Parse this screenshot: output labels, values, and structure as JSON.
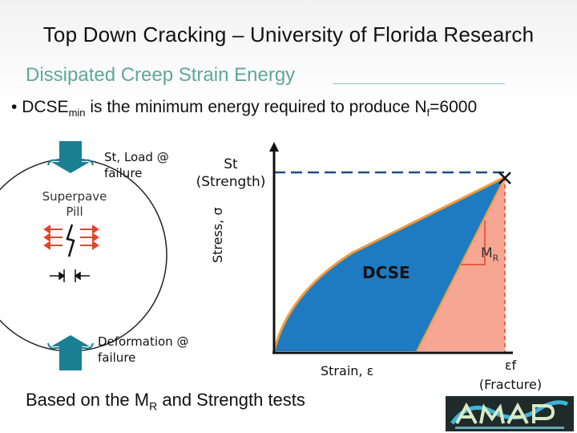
{
  "slide": {
    "title": "Top Down Cracking – University of Florida Research",
    "subtitle": "Dissipated Creep Strain Energy",
    "bullet": {
      "symbol": "•",
      "pre": "DCSE",
      "sub": "min",
      "mid": " is the minimum energy required to produce N",
      "sub2": "f",
      "post": "=6000"
    },
    "footnote": {
      "pre": "Based on the M",
      "sub": "R",
      "post": " and Strength tests"
    }
  },
  "specimen": {
    "load_label_line1": "St, Load @",
    "load_label_line2": "failure",
    "pill_label_line1": "Superpave",
    "pill_label_line2": "Pill",
    "deform_label_line1": "Deformation @",
    "deform_label_line2": "failure"
  },
  "graph": {
    "strength_label_line1": "St",
    "strength_label_line2": "(Strength)",
    "y_axis_label": "Stress, σ",
    "x_axis_label": "Strain, ε",
    "area_label": "DCSE",
    "mr_label_main": "M",
    "mr_label_sub": "R",
    "fracture_label_line1": "εf",
    "fracture_label_line2": "(Fracture)",
    "colors": {
      "dcse_fill": "#1e7bc1",
      "elastic_fill": "#f7a693",
      "curve": "#f09a3a",
      "arrow": "#1a7f93"
    }
  }
}
